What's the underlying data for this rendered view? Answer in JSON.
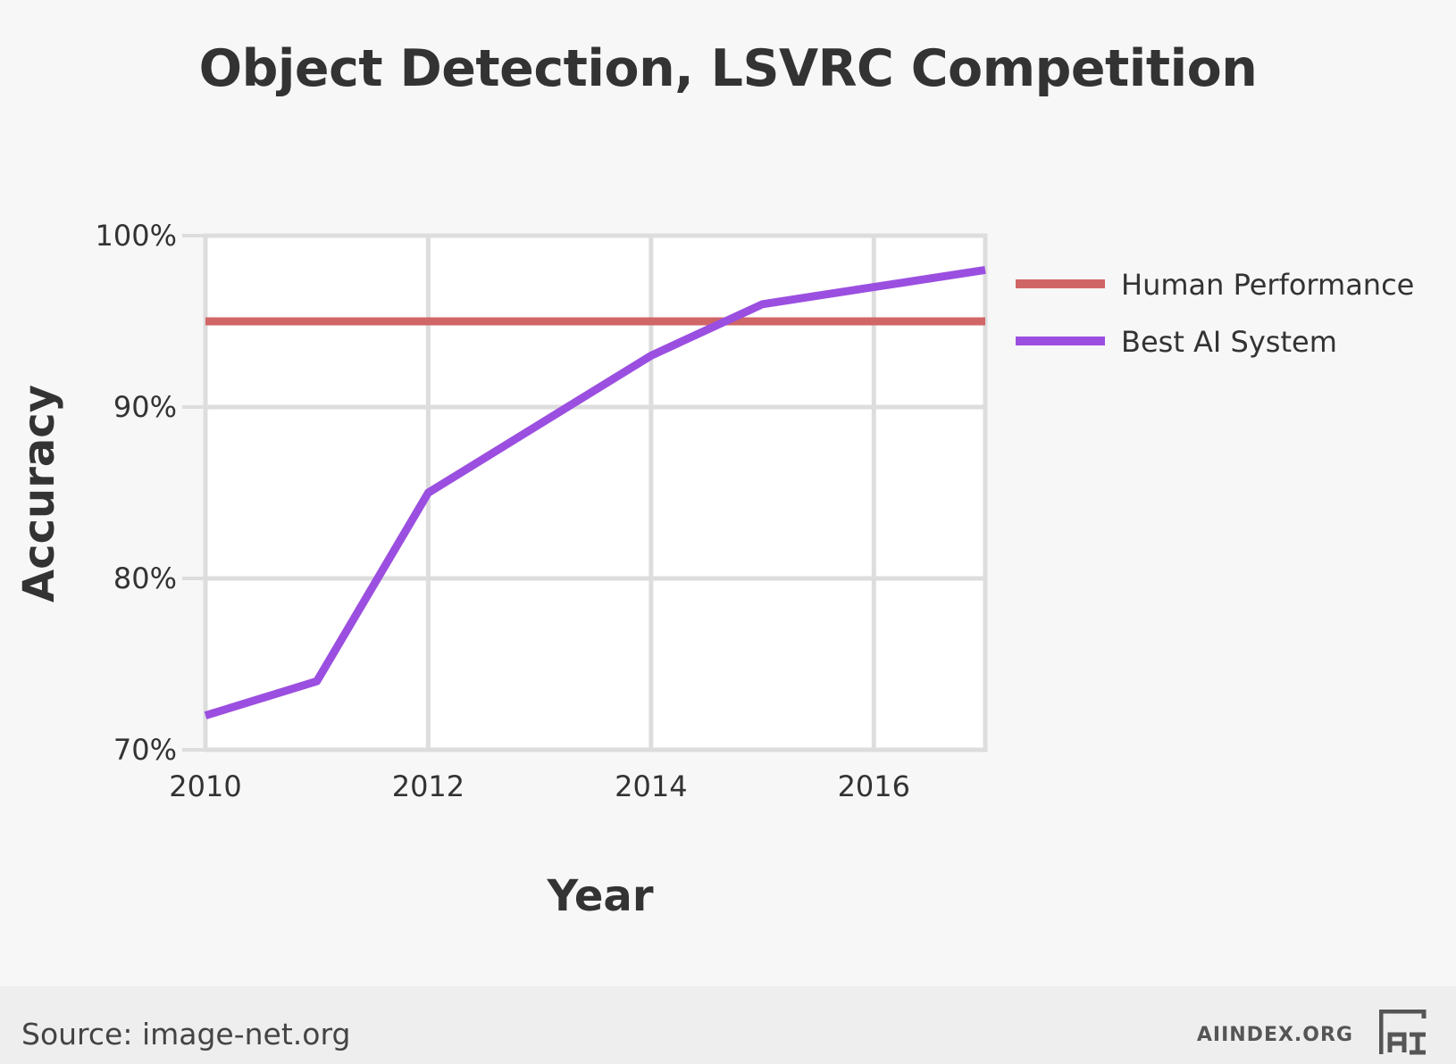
{
  "chart_data": {
    "type": "line",
    "title": "Object Detection, LSVRC Competition",
    "xlabel": "Year",
    "ylabel": "Accuracy",
    "xlim": [
      2010,
      2017
    ],
    "ylim": [
      70,
      100
    ],
    "x_ticks": [
      2010,
      2012,
      2014,
      2016
    ],
    "y_ticks": [
      70,
      80,
      90,
      100
    ],
    "y_tick_labels": [
      "70%",
      "80%",
      "90%",
      "100%"
    ],
    "grid": true,
    "legend_position": "right",
    "series": [
      {
        "name": "Human Performance",
        "color": "#d06666",
        "x": [
          2010,
          2017
        ],
        "y": [
          95,
          95
        ]
      },
      {
        "name": "Best AI System",
        "color": "#9b4fe0",
        "x": [
          2010,
          2011,
          2012,
          2013,
          2014,
          2015,
          2016,
          2017
        ],
        "y": [
          72,
          74,
          85,
          89,
          93,
          96,
          97,
          98
        ]
      }
    ]
  },
  "footer": {
    "source": "Source: image-net.org",
    "brand": "AIINDEX.ORG",
    "logo_icon": "ai-index-logo-icon"
  }
}
